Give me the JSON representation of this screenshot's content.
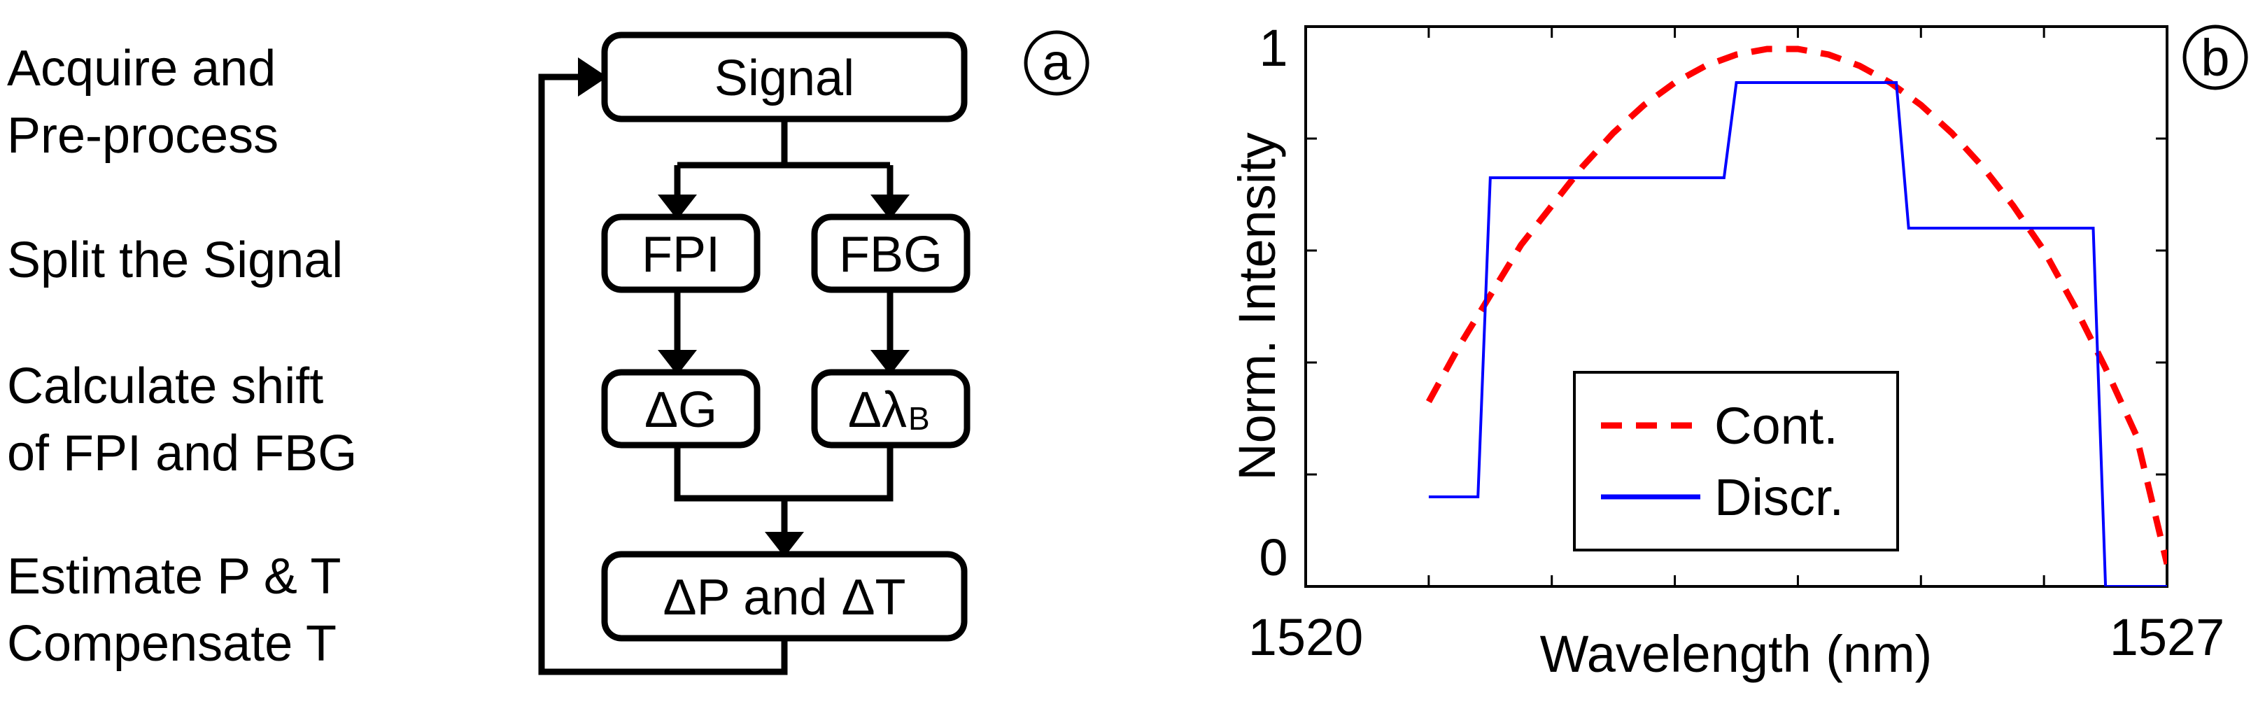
{
  "steps": {
    "s1_l1": "Acquire and",
    "s1_l2": "Pre-process",
    "s2_l1": "Split the Signal",
    "s3_l1": "Calculate shift",
    "s3_l2": "of FPI and FBG",
    "s4_l1": "Estimate P & T",
    "s4_l2": "Compensate T"
  },
  "flow": {
    "signal": "Signal",
    "fpi": "FPI",
    "fbg": "FBG",
    "dg": "ΔG",
    "dl_main": "Δλ",
    "dl_sub": "B",
    "dpdt": "ΔP and ΔT"
  },
  "panels": {
    "a": "a",
    "b": "b"
  },
  "chart_data": {
    "type": "line",
    "xlabel": "Wavelength (nm)",
    "ylabel": "Norm. Intensity",
    "xlim": [
      1520,
      1527
    ],
    "ylim": [
      0,
      1
    ],
    "x_tick_labels": [
      "1520",
      "1527"
    ],
    "y_tick_labels": [
      "0",
      "1"
    ],
    "grid": false,
    "legend": "bottom-center",
    "series": [
      {
        "name": "Cont.",
        "color": "#ff0000",
        "style": "dashed",
        "x": [
          1521.0,
          1521.25,
          1521.5,
          1521.75,
          1522.0,
          1522.25,
          1522.5,
          1522.75,
          1523.0,
          1523.25,
          1523.5,
          1523.75,
          1524.0,
          1524.25,
          1524.5,
          1524.75,
          1525.0,
          1525.25,
          1525.5,
          1525.75,
          1526.0,
          1526.25,
          1526.5,
          1526.75,
          1527.0
        ],
        "y": [
          0.33,
          0.43,
          0.52,
          0.61,
          0.68,
          0.75,
          0.81,
          0.86,
          0.9,
          0.93,
          0.95,
          0.96,
          0.96,
          0.95,
          0.93,
          0.9,
          0.86,
          0.81,
          0.75,
          0.68,
          0.6,
          0.5,
          0.39,
          0.27,
          0.04
        ]
      },
      {
        "name": "Discr.",
        "color": "#0000ff",
        "style": "solid",
        "x": [
          1521.0,
          1521.4,
          1521.5,
          1523.4,
          1523.5,
          1524.8,
          1524.9,
          1526.4,
          1526.5,
          1527.0
        ],
        "y": [
          0.16,
          0.16,
          0.73,
          0.73,
          0.9,
          0.9,
          0.64,
          0.64,
          0.0,
          0.0
        ]
      }
    ]
  }
}
